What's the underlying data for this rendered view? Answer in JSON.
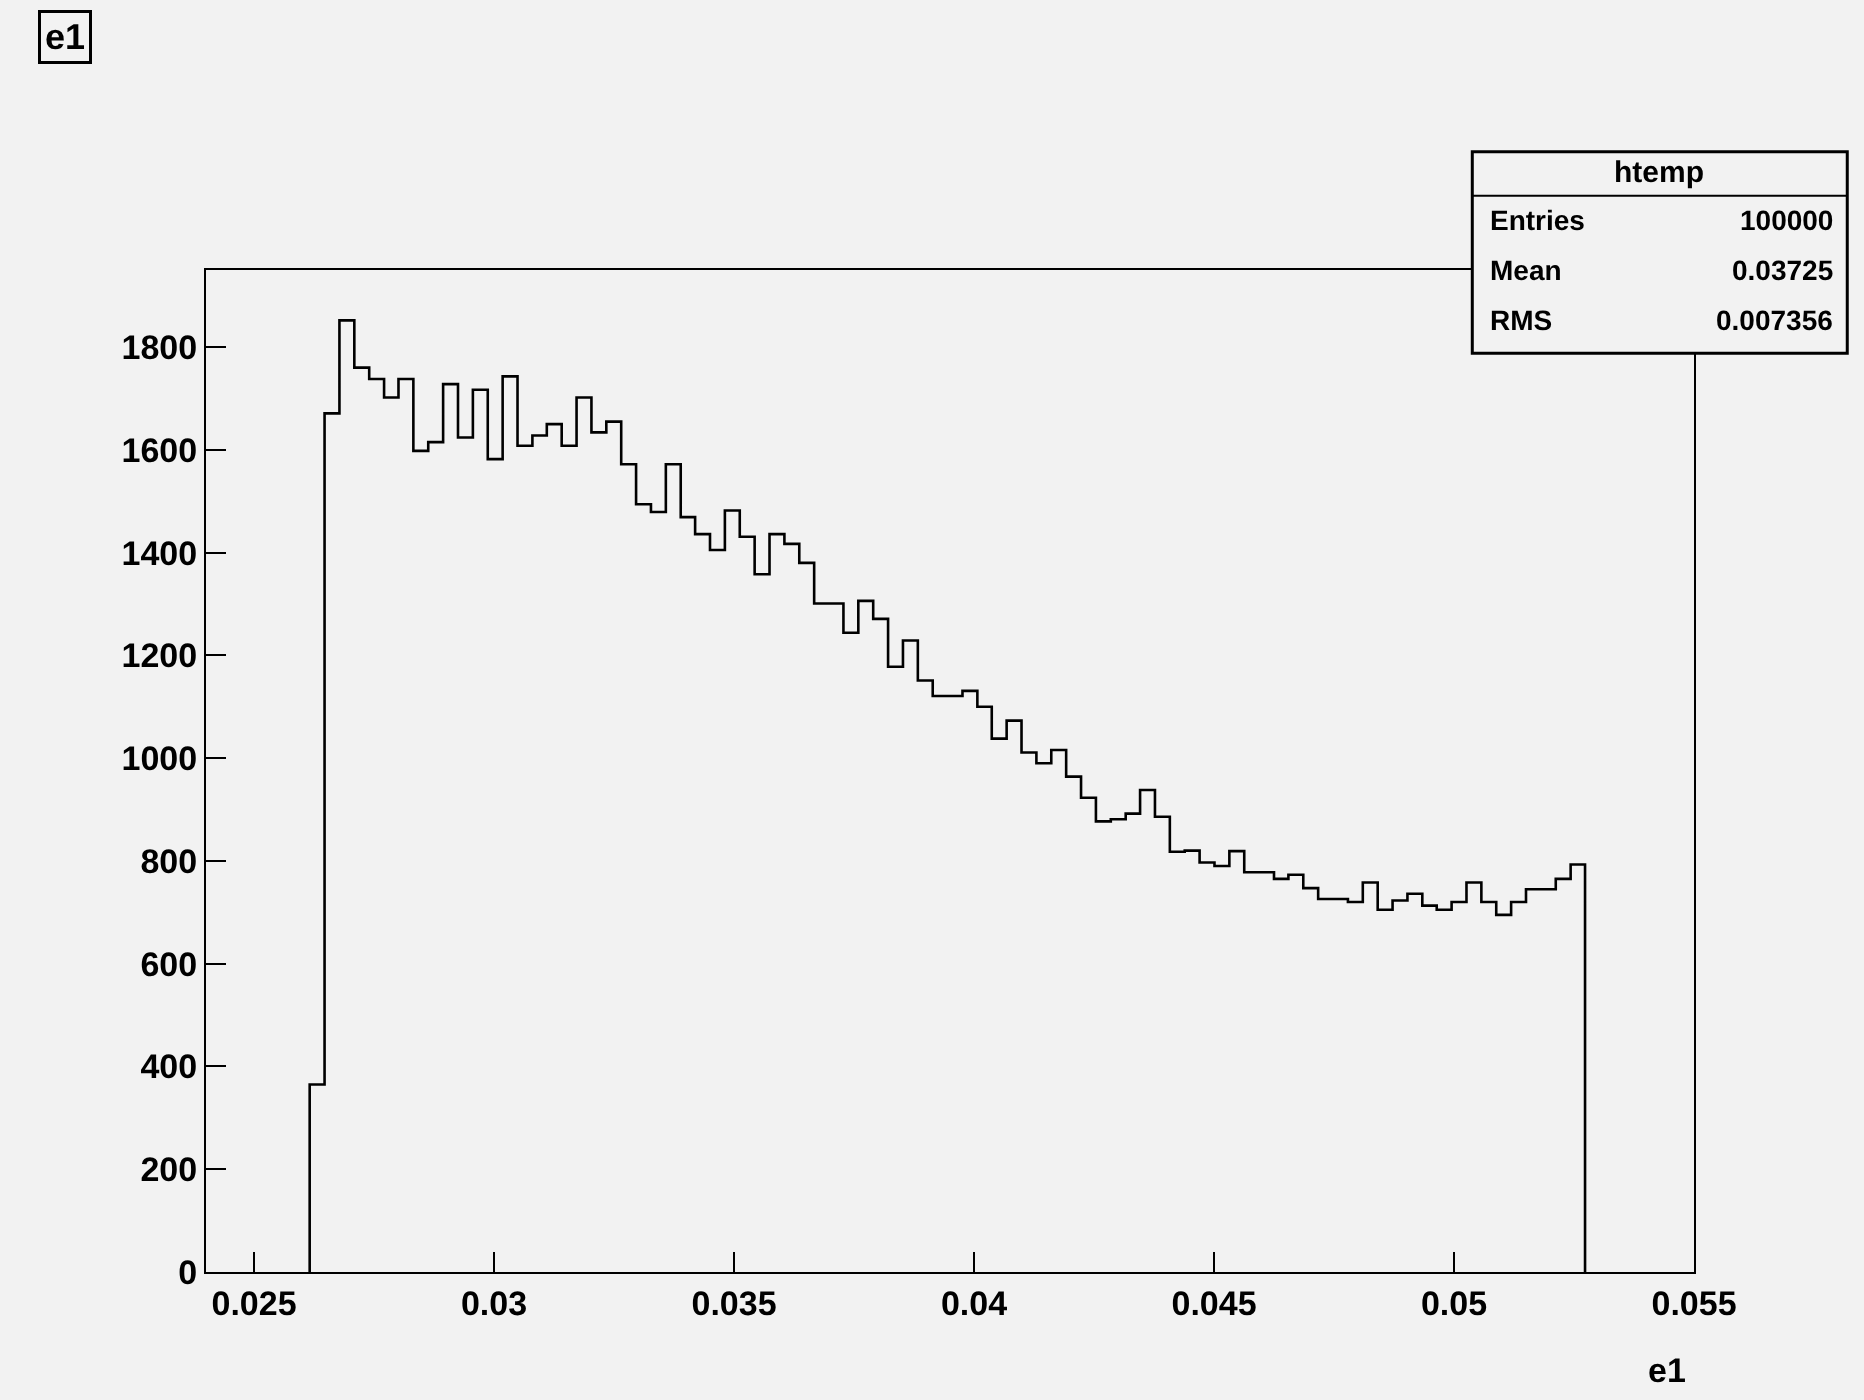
{
  "chart_data": {
    "type": "histogram",
    "title": "e1",
    "xlabel": "e1",
    "color": "#000000",
    "bins": [
      0.02616,
      0.02647,
      0.02678,
      0.02709,
      0.0274,
      0.02771,
      0.02801,
      0.02832,
      0.02863,
      0.02894,
      0.02925,
      0.02956,
      0.02987,
      0.03018,
      0.03049,
      0.0308,
      0.0311,
      0.03141,
      0.03172,
      0.03203,
      0.03234,
      0.03265,
      0.03296,
      0.03327,
      0.03358,
      0.03389,
      0.03419,
      0.0345,
      0.03481,
      0.03512,
      0.03543,
      0.03574,
      0.03605,
      0.03636,
      0.03667,
      0.03698,
      0.03728,
      0.03759,
      0.0379,
      0.03821,
      0.03852,
      0.03883,
      0.03914,
      0.03945,
      0.03976,
      0.04007,
      0.04037,
      0.04068,
      0.04099,
      0.0413,
      0.04161,
      0.04192,
      0.04223,
      0.04254,
      0.04285,
      0.04316,
      0.04346,
      0.04377,
      0.04408,
      0.04439,
      0.0447,
      0.04501,
      0.04532,
      0.04563,
      0.04594,
      0.04625,
      0.04655,
      0.04686,
      0.04717,
      0.04748,
      0.04779,
      0.0481,
      0.04841,
      0.04872,
      0.04903,
      0.04934,
      0.04964,
      0.04995,
      0.05026,
      0.05057,
      0.05088,
      0.05119,
      0.0515,
      0.05181,
      0.05212,
      0.05243,
      0.05273
    ],
    "values": [
      365,
      1671,
      1852,
      1760,
      1738,
      1702,
      1738,
      1598,
      1615,
      1728,
      1624,
      1717,
      1582,
      1743,
      1608,
      1628,
      1650,
      1608,
      1702,
      1634,
      1655,
      1572,
      1494,
      1479,
      1572,
      1469,
      1436,
      1405,
      1482,
      1431,
      1358,
      1436,
      1417,
      1380,
      1301,
      1301,
      1244,
      1306,
      1271,
      1178,
      1229,
      1151,
      1121,
      1121,
      1131,
      1100,
      1038,
      1073,
      1011,
      990,
      1016,
      964,
      923,
      877,
      881,
      892,
      938,
      886,
      818,
      820,
      797,
      790,
      819,
      778,
      778,
      765,
      773,
      747,
      726,
      726,
      720,
      758,
      705,
      723,
      736,
      713,
      705,
      720,
      758,
      720,
      695,
      720,
      745,
      745,
      765,
      793
    ],
    "xlim": [
      0.024,
      0.055
    ],
    "ylim": [
      0,
      1950
    ],
    "xticks": [
      0.025,
      0.03,
      0.035,
      0.04,
      0.045,
      0.05,
      0.055
    ],
    "yticks": [
      0,
      200,
      400,
      600,
      800,
      1000,
      1200,
      1400,
      1600,
      1800
    ],
    "grid": false,
    "annotations": [
      "htemp",
      "Entries",
      "100000",
      "Mean",
      "0.03725",
      "RMS",
      "0.007356"
    ]
  }
}
